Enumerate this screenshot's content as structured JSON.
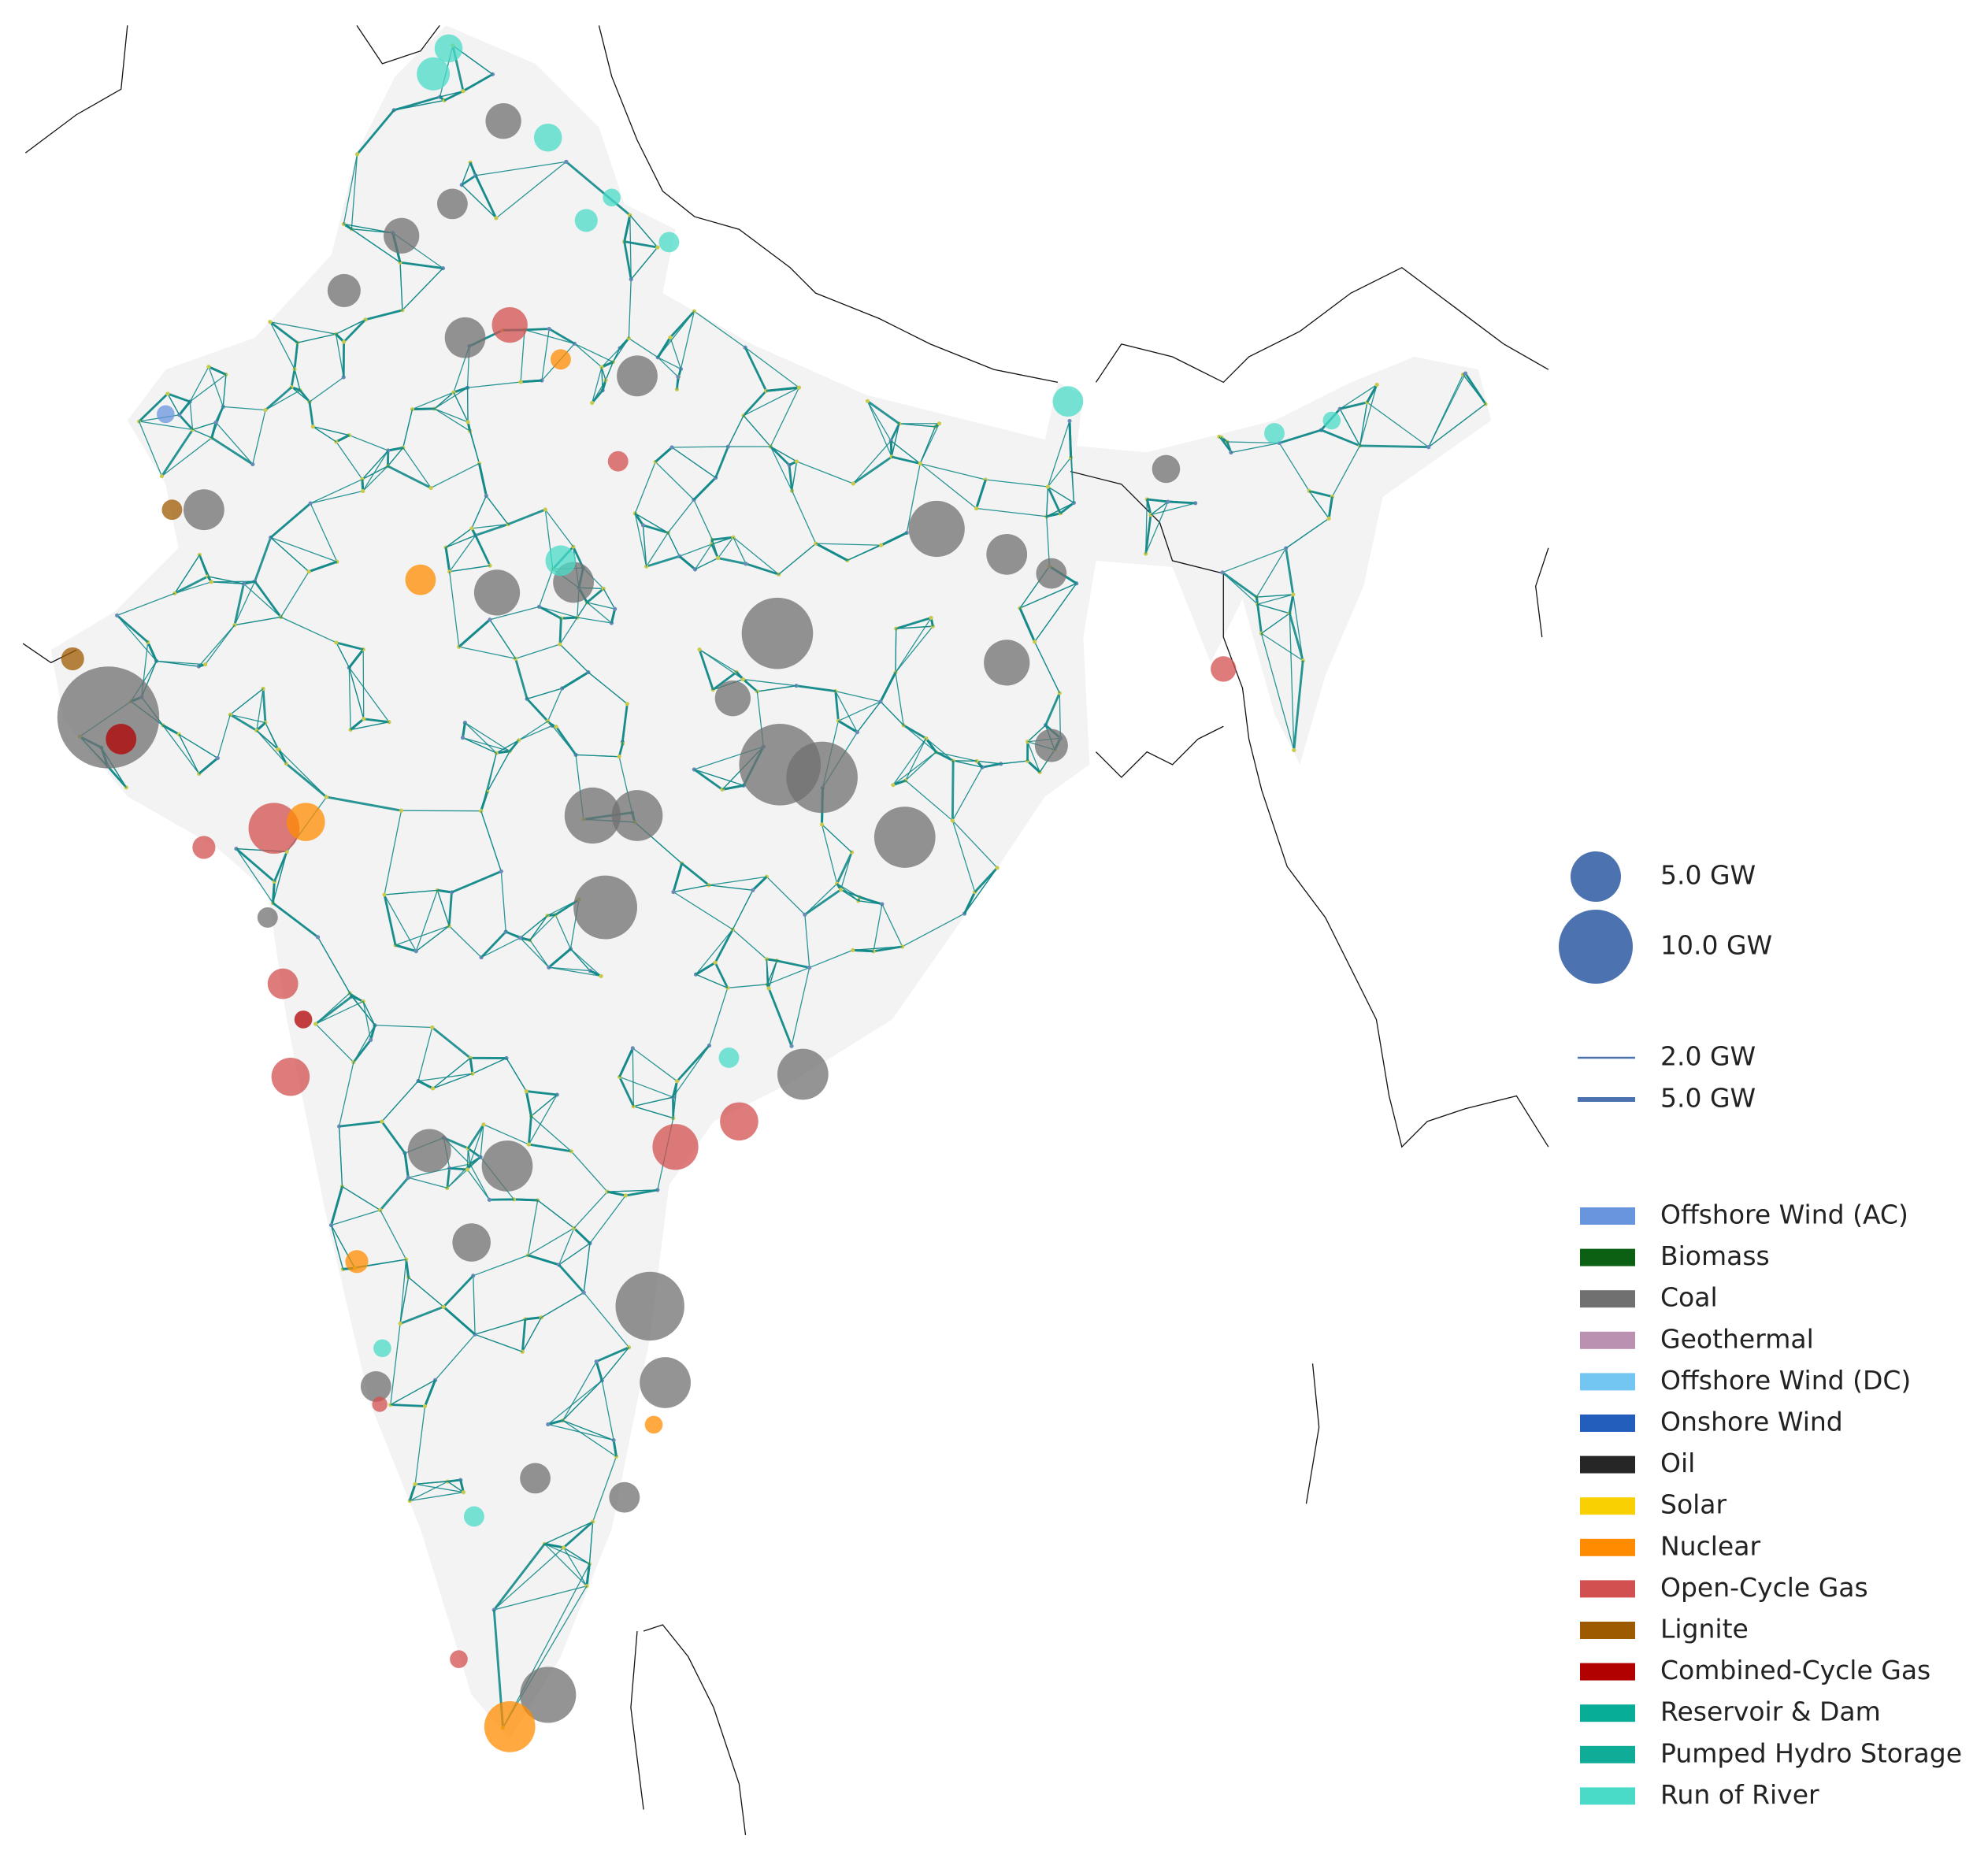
{
  "size_legend": {
    "items": [
      "5.0 GW",
      "10.0 GW"
    ],
    "color": "#4c72b0"
  },
  "line_legend": {
    "items": [
      "2.0 GW",
      "5.0 GW"
    ],
    "color": "#4c72b0"
  },
  "carrier_legend": {
    "items": [
      {
        "name": "Offshore Wind (AC)",
        "color": "#6895dd"
      },
      {
        "name": "Biomass",
        "color": "#0c6013"
      },
      {
        "name": "Coal",
        "color": "#707070"
      },
      {
        "name": "Geothermal",
        "color": "#ba91b1"
      },
      {
        "name": "Offshore Wind (DC)",
        "color": "#74c6f2"
      },
      {
        "name": "Onshore Wind",
        "color": "#235ebc"
      },
      {
        "name": "Oil",
        "color": "#262626"
      },
      {
        "name": "Solar",
        "color": "#f9d002"
      },
      {
        "name": "Nuclear",
        "color": "#ff8c00"
      },
      {
        "name": "Open-Cycle Gas",
        "color": "#d35050"
      },
      {
        "name": "Lignite",
        "color": "#9e5a01"
      },
      {
        "name": "Combined-Cycle Gas",
        "color": "#b20101"
      },
      {
        "name": "Reservoir & Dam",
        "color": "#08ad97"
      },
      {
        "name": "Pumped Hydro Storage",
        "color": "#0fad98"
      },
      {
        "name": "Run of River",
        "color": "#4adbc8"
      }
    ]
  }
}
